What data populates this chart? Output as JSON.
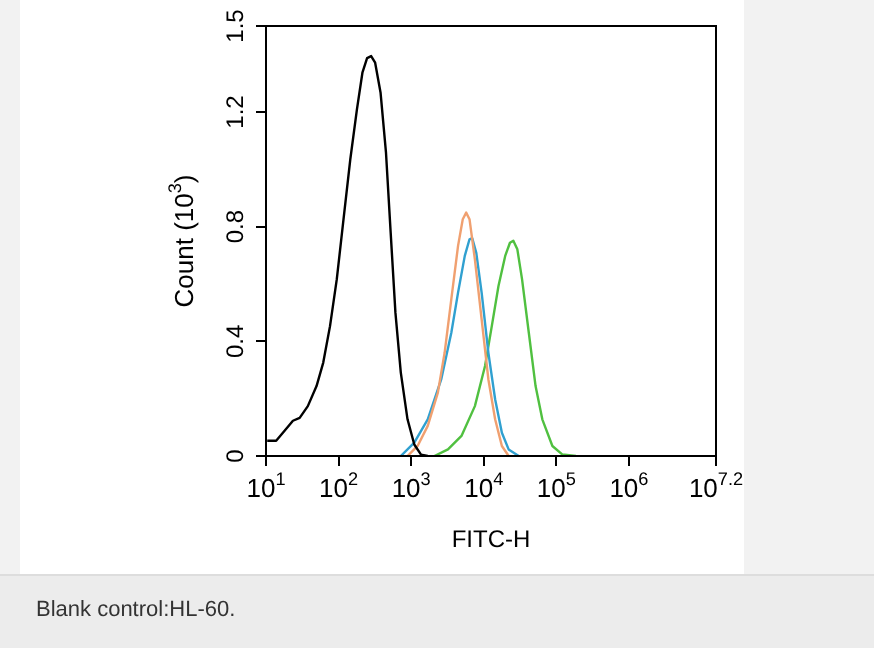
{
  "chart_data": {
    "type": "line",
    "xlabel": "FITC-H",
    "ylabel": "Count (10$^{3}$)",
    "log": "x",
    "grid": false,
    "legend": false,
    "marker": "none",
    "line_style": "solid",
    "xlim": [
      10,
      15848932
    ],
    "ylim": [
      0,
      1.5
    ],
    "xticks": [
      {
        "value": 10,
        "label": "10$^{1}$"
      },
      {
        "value": 100,
        "label": "10$^{2}$"
      },
      {
        "value": 1000,
        "label": "10$^{3}$"
      },
      {
        "value": 10000,
        "label": "10$^{4}$"
      },
      {
        "value": 100000,
        "label": "10$^{5}$"
      },
      {
        "value": 1000000,
        "label": "10$^{6}$"
      },
      {
        "value": 15848932,
        "label": "10$^{7.2}$"
      }
    ],
    "yticks": [
      0,
      0.4,
      0.8,
      1.2,
      1.5
    ],
    "annotations": [
      "Blank control:HL-60."
    ],
    "series": [
      {
        "color": "#000000",
        "x": [
          10.4,
          13.8,
          17.1,
          23.5,
          29.1,
          37.7,
          49.7,
          61.5,
          76.2,
          94.4,
          117,
          145,
          179,
          213,
          247,
          281,
          319,
          379,
          450,
          522,
          607,
          720,
          891,
          1104,
          1368,
          1692
        ],
        "values": [
          0.053,
          0.053,
          0.081,
          0.123,
          0.133,
          0.174,
          0.244,
          0.326,
          0.453,
          0.616,
          0.826,
          1.035,
          1.209,
          1.337,
          1.388,
          1.395,
          1.372,
          1.267,
          1.058,
          0.779,
          0.5,
          0.291,
          0.128,
          0.04,
          0.005,
          0
        ]
      },
      {
        "color": "#f0a070",
        "x": [
          891,
          1227,
          1692,
          2333,
          2891,
          3575,
          4426,
          5140,
          5728,
          6368,
          7551,
          9354,
          11590,
          14350,
          17780,
          22030
        ],
        "values": [
          0,
          0.035,
          0.105,
          0.221,
          0.36,
          0.547,
          0.733,
          0.826,
          0.849,
          0.826,
          0.686,
          0.477,
          0.267,
          0.128,
          0.035,
          0
        ]
      },
      {
        "color": "#30a0d0",
        "x": [
          720,
          1104,
          1692,
          2595,
          3575,
          4426,
          5480,
          6368,
          6934,
          7888,
          9354,
          11590,
          14350,
          17780,
          22030,
          30340
        ],
        "values": [
          0,
          0.047,
          0.128,
          0.267,
          0.43,
          0.57,
          0.698,
          0.756,
          0.76,
          0.709,
          0.57,
          0.36,
          0.198,
          0.081,
          0.023,
          0
        ]
      },
      {
        "color": "#50c040",
        "x": [
          2094,
          3214,
          4932,
          7551,
          10420,
          12910,
          15960,
          19760,
          22960,
          25570,
          29040,
          33730,
          41780,
          51760,
          64120,
          88310,
          121600,
          186600
        ],
        "values": [
          0,
          0.023,
          0.07,
          0.174,
          0.314,
          0.453,
          0.593,
          0.698,
          0.744,
          0.751,
          0.721,
          0.616,
          0.43,
          0.244,
          0.128,
          0.035,
          0.005,
          0
        ]
      }
    ]
  }
}
